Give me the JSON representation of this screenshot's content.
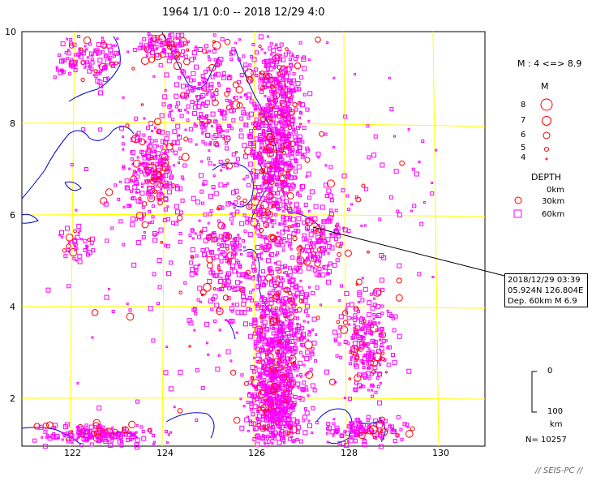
{
  "title": "1964 1/1 0:0 -- 2018 12/29 4:0",
  "map": {
    "x_range": [
      121,
      131
    ],
    "y_range": [
      1,
      10
    ],
    "x_ticks": [
      "122",
      "124",
      "126",
      "128",
      "130"
    ],
    "y_ticks": [
      "2",
      "4",
      "6",
      "8",
      "10"
    ],
    "grid_color": "#ffff00",
    "coast_color": "#0000cc",
    "event_color": "#ff00ff",
    "highlight_color": "#ff0000"
  },
  "legend": {
    "magnitude_scale": "M : 4 <=> 8.9",
    "magnitude_title": "M",
    "magnitudes": [
      "8",
      "7",
      "6",
      "5",
      "4"
    ],
    "depth_title": "DEPTH",
    "depths": [
      "0km",
      "30km",
      "60km"
    ]
  },
  "event_info": {
    "datetime": "2018/12/29 03:39",
    "location": "05.924N  126.804E",
    "depth_mag": "Dep. 60km   M 6.9"
  },
  "depth_bar": {
    "top": "0",
    "bottom": "100",
    "unit": "km"
  },
  "count": "N= 10257",
  "credit": "// SEIS-PC //"
}
